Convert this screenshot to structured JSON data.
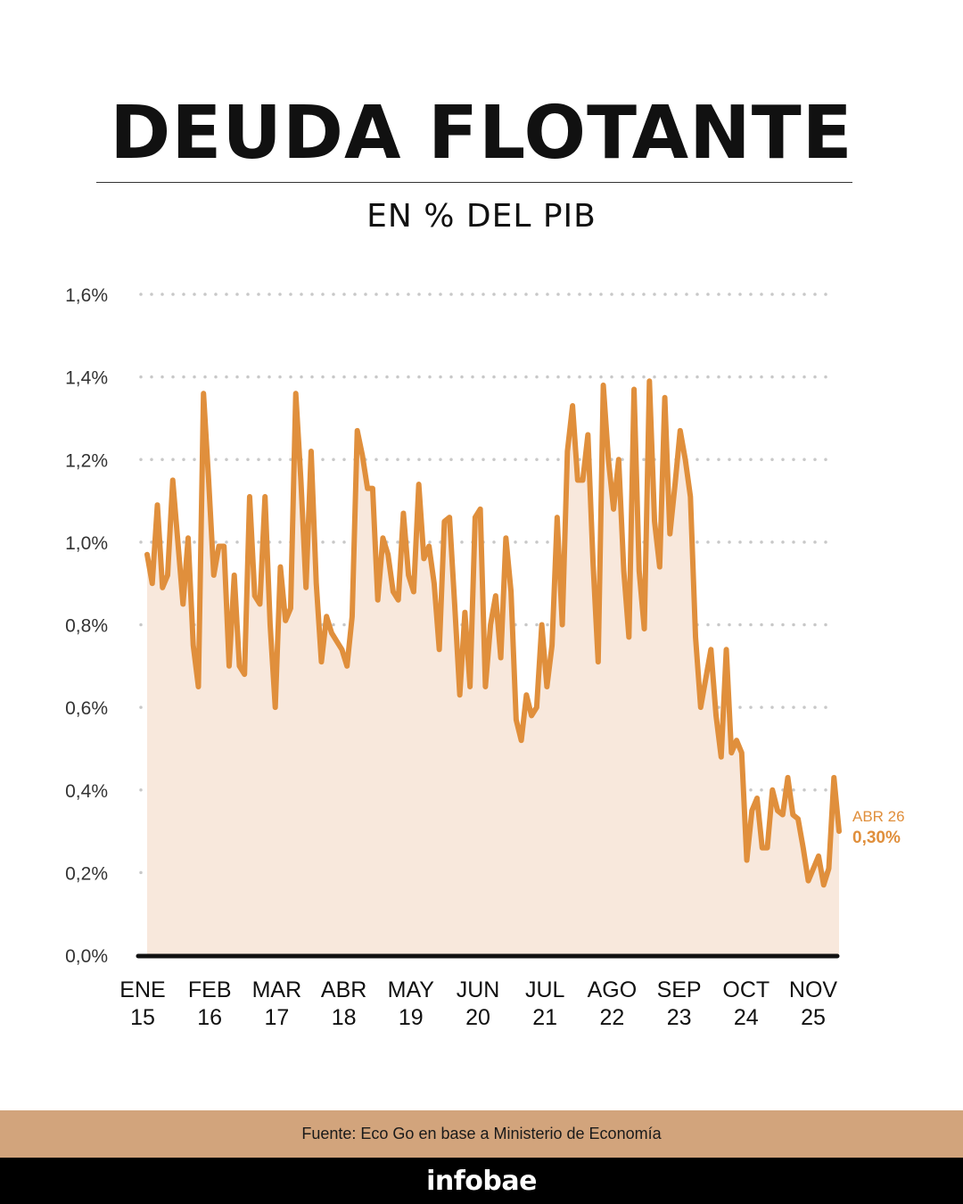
{
  "header": {
    "title": "DEUDA FLOTANTE",
    "subtitle": "EN % DEL PIB"
  },
  "footer": {
    "source": "Fuente: Eco Go en base a Ministerio de Economía",
    "brand": "infobae"
  },
  "colors": {
    "line": "#e08f3c",
    "area": "#f8e8dc",
    "grid": "#c8c8c8",
    "axis": "#111111",
    "footer_band": "#d2a47c",
    "brand_bar": "#000000"
  },
  "chart_data": {
    "type": "area",
    "title": "DEUDA FLOTANTE",
    "subtitle": "EN % DEL PIB",
    "ylim": [
      0,
      1.6
    ],
    "yticks": [
      {
        "value": 0.0,
        "label": "0,0%"
      },
      {
        "value": 0.2,
        "label": "0,2%"
      },
      {
        "value": 0.4,
        "label": "0,4%"
      },
      {
        "value": 0.6,
        "label": "0,6%"
      },
      {
        "value": 0.8,
        "label": "0,8%"
      },
      {
        "value": 1.0,
        "label": "1,0%"
      },
      {
        "value": 1.2,
        "label": "1,2%"
      },
      {
        "value": 1.4,
        "label": "1,4%"
      },
      {
        "value": 1.6,
        "label": "1,6%"
      }
    ],
    "xticks": [
      {
        "index": 0,
        "month": "ENE",
        "year": "15"
      },
      {
        "index": 13,
        "month": "FEB",
        "year": "16"
      },
      {
        "index": 26,
        "month": "MAR",
        "year": "17"
      },
      {
        "index": 39,
        "month": "ABR",
        "year": "18"
      },
      {
        "index": 52,
        "month": "MAY",
        "year": "19"
      },
      {
        "index": 65,
        "month": "JUN",
        "year": "20"
      },
      {
        "index": 78,
        "month": "JUL",
        "year": "21"
      },
      {
        "index": 91,
        "month": "AGO",
        "year": "22"
      },
      {
        "index": 104,
        "month": "SEP",
        "year": "23"
      },
      {
        "index": 117,
        "month": "OCT",
        "year": "24"
      },
      {
        "index": 130,
        "month": "NOV",
        "year": "25"
      }
    ],
    "grid": true,
    "x_start": "2015-01",
    "x_end": "2026-04",
    "values": [
      0.97,
      0.9,
      1.09,
      0.89,
      0.92,
      1.15,
      1.0,
      0.85,
      1.01,
      0.75,
      0.65,
      1.36,
      1.15,
      0.92,
      0.99,
      0.99,
      0.7,
      0.92,
      0.7,
      0.68,
      1.11,
      0.87,
      0.85,
      1.11,
      0.8,
      0.6,
      0.94,
      0.81,
      0.84,
      1.36,
      1.15,
      0.89,
      1.22,
      0.9,
      0.71,
      0.82,
      0.78,
      0.76,
      0.74,
      0.7,
      0.82,
      1.27,
      1.21,
      1.13,
      1.13,
      0.86,
      1.01,
      0.97,
      0.88,
      0.86,
      1.07,
      0.92,
      0.88,
      1.14,
      0.96,
      0.99,
      0.9,
      0.74,
      1.05,
      1.06,
      0.85,
      0.63,
      0.83,
      0.65,
      1.06,
      1.08,
      0.65,
      0.8,
      0.87,
      0.72,
      1.01,
      0.88,
      0.57,
      0.52,
      0.63,
      0.58,
      0.6,
      0.8,
      0.65,
      0.75,
      1.06,
      0.8,
      1.22,
      1.33,
      1.15,
      1.15,
      1.26,
      0.95,
      0.71,
      1.38,
      1.2,
      1.08,
      1.2,
      0.93,
      0.77,
      1.37,
      0.93,
      0.79,
      1.39,
      1.05,
      0.94,
      1.35,
      1.02,
      1.14,
      1.27,
      1.2,
      1.11,
      0.77,
      0.6,
      0.67,
      0.74,
      0.58,
      0.48,
      0.74,
      0.49,
      0.52,
      0.49,
      0.23,
      0.35,
      0.38,
      0.26,
      0.26,
      0.4,
      0.35,
      0.34,
      0.43,
      0.34,
      0.33,
      0.26,
      0.18,
      0.21,
      0.24,
      0.17,
      0.21,
      0.43,
      0.3
    ],
    "annotation": {
      "label": "ABR 26",
      "value_label": "0,30%",
      "value": 0.3
    }
  }
}
